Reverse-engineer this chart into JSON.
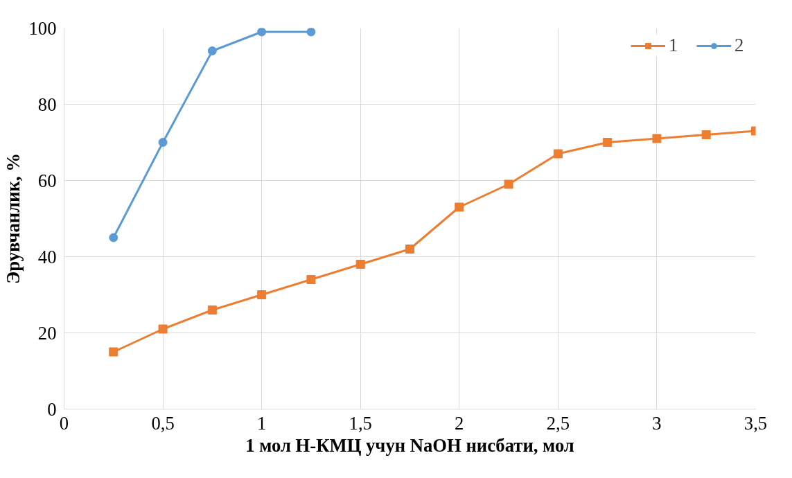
{
  "chart_data": {
    "type": "line",
    "xlabel": "1 мол Н-КМЦ учун NaOH нисбати, мол",
    "ylabel": "Эрувчанлик, %",
    "xlim": [
      0,
      3.5
    ],
    "ylim": [
      0,
      100
    ],
    "xticks": [
      0,
      {
        "value": 0.5,
        "label": "0,5"
      },
      1,
      {
        "value": 1.5,
        "label": "1,5"
      },
      2,
      {
        "value": 2.5,
        "label": "2,5"
      },
      3,
      {
        "value": 3.5,
        "label": "3,5"
      }
    ],
    "yticks": [
      0,
      20,
      40,
      60,
      80,
      100
    ],
    "grid": true,
    "legend": "top right",
    "line_style": "solid",
    "series": [
      {
        "name": "1",
        "color": "#ed7d31",
        "marker": "square",
        "x": [
          0.25,
          0.5,
          0.75,
          1,
          1.25,
          1.5,
          1.75,
          2,
          2.25,
          2.5,
          2.75,
          3,
          3.25,
          3.5
        ],
        "values": [
          15,
          21,
          26,
          30,
          34,
          38,
          42,
          53,
          59,
          67,
          70,
          71,
          72,
          73
        ]
      },
      {
        "name": "2",
        "color": "#5b9bd5",
        "marker": "circle",
        "x": [
          0.25,
          0.5,
          0.75,
          1,
          1.25
        ],
        "values": [
          45,
          70,
          94,
          99,
          99
        ]
      }
    ]
  }
}
